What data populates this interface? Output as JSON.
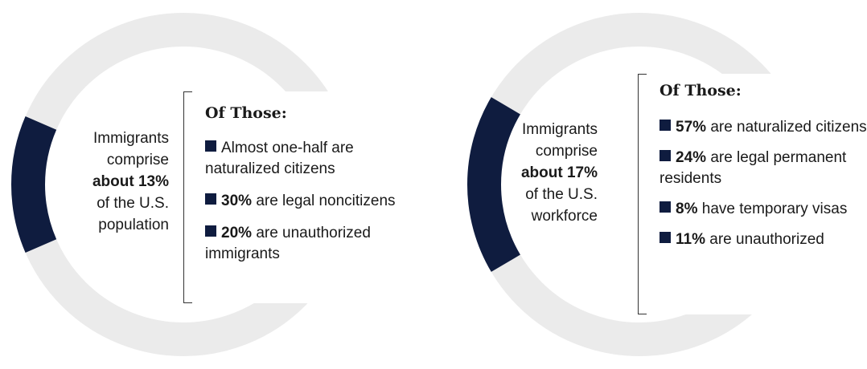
{
  "colors": {
    "ring": "#ebebeb",
    "highlight": "#0f1c3f"
  },
  "chart_data": [
    {
      "type": "pie",
      "style": "donut",
      "slices": [
        {
          "label": "Immigrants",
          "value": 13
        },
        {
          "label": "",
          "value": 87
        }
      ],
      "center_text": {
        "before": "Immigrants comprise",
        "strong": "about 13%",
        "after": "of the U.S. population"
      },
      "breakdown_title": "Of Those:",
      "breakdown": [
        {
          "strong": "",
          "text": "Almost one-half are naturalized citizens"
        },
        {
          "strong": "30%",
          "text": "are legal noncitizens"
        },
        {
          "strong": "20%",
          "text": "are unauthorized immigrants"
        }
      ]
    },
    {
      "type": "pie",
      "style": "donut",
      "slices": [
        {
          "label": "Immigrants",
          "value": 17
        },
        {
          "label": "",
          "value": 83
        }
      ],
      "center_text": {
        "before": "Immigrants comprise",
        "strong": "about 17%",
        "after": "of the U.S. workforce"
      },
      "breakdown_title": "Of Those:",
      "breakdown": [
        {
          "strong": "57%",
          "text": "are naturalized citizens"
        },
        {
          "strong": "24%",
          "text": "are legal permanent residents"
        },
        {
          "strong": "8%",
          "text": "have temporary visas"
        },
        {
          "strong": "11%",
          "text": "are unauthorized"
        }
      ]
    }
  ]
}
